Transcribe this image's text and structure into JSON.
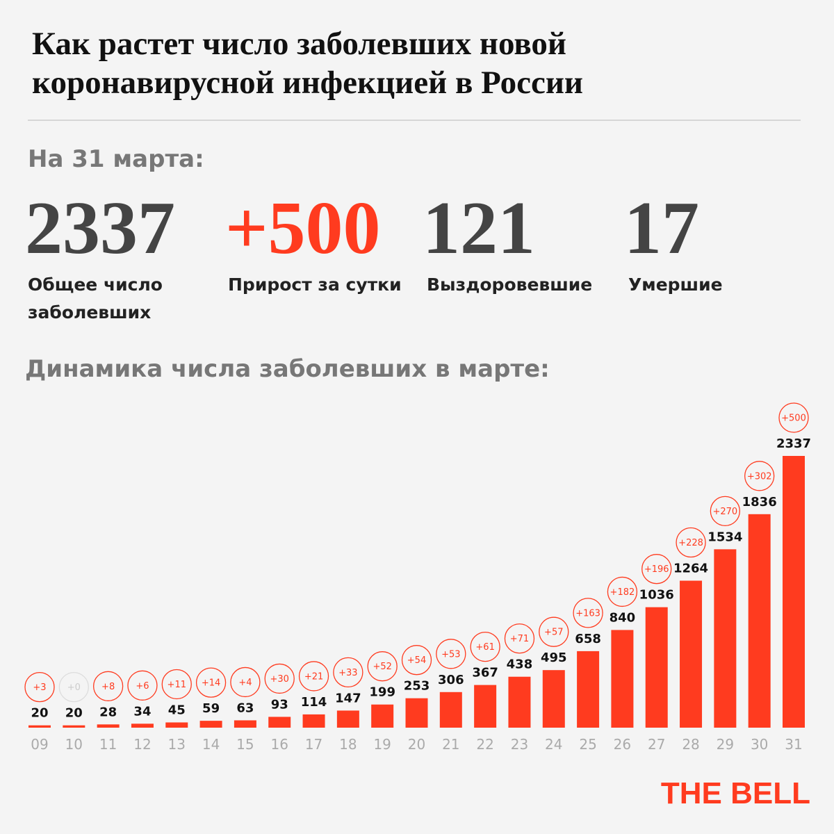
{
  "header": {
    "title_lines": [
      "Как растет число заболевших новой",
      "коронавирусной инфекцией в России"
    ],
    "date": "На 31 марта:"
  },
  "stats": [
    {
      "value": "2337",
      "label_lines": [
        "Общее число",
        "заболевших"
      ]
    },
    {
      "value": "+500",
      "label_lines": [
        "Прирост за сутки"
      ]
    },
    {
      "value": "121",
      "label_lines": [
        "Выздоровевшие"
      ]
    },
    {
      "value": "17",
      "label_lines": [
        "Умершие"
      ]
    }
  ],
  "chart_data": {
    "type": "bar",
    "title": "Динамика числа заболевших в марте:",
    "categories": [
      "09",
      "10",
      "11",
      "12",
      "13",
      "14",
      "15",
      "16",
      "17",
      "18",
      "19",
      "20",
      "21",
      "22",
      "23",
      "24",
      "25",
      "26",
      "27",
      "28",
      "29",
      "30",
      "31"
    ],
    "values": [
      20,
      20,
      28,
      34,
      45,
      59,
      63,
      93,
      114,
      147,
      199,
      253,
      306,
      367,
      438,
      495,
      658,
      840,
      1036,
      1264,
      1534,
      1836,
      2337
    ],
    "changes": [
      3,
      0,
      8,
      6,
      11,
      14,
      4,
      30,
      21,
      33,
      52,
      54,
      53,
      61,
      71,
      57,
      163,
      182,
      196,
      228,
      270,
      302,
      500
    ],
    "change_labels": [
      "+3",
      "+0",
      "+8",
      "+6",
      "+11",
      "+14",
      "+4",
      "+30",
      "+21",
      "+33",
      "+52",
      "+54",
      "+53",
      "+61",
      "+71",
      "+57",
      "+163",
      "+182",
      "+196",
      "+228",
      "+270",
      "+302",
      "+500"
    ],
    "color": "#ff3b1f"
  },
  "brand": "THE BELL"
}
